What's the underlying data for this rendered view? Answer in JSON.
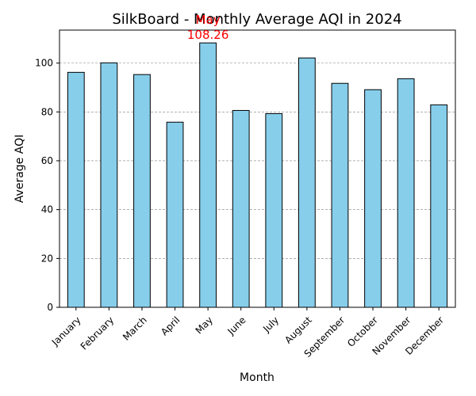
{
  "chart_data": {
    "type": "bar",
    "title": "SilkBoard - Monthly Average AQI in 2024",
    "xlabel": "Month",
    "ylabel": "Average AQI",
    "ylim": [
      0,
      113.5
    ],
    "yticks": [
      0,
      20,
      40,
      60,
      80,
      100
    ],
    "grid": true,
    "categories": [
      "January",
      "February",
      "March",
      "April",
      "May",
      "June",
      "July",
      "August",
      "September",
      "October",
      "November",
      "December"
    ],
    "values": [
      96.2,
      100.1,
      95.3,
      75.8,
      108.26,
      80.6,
      79.3,
      102.1,
      91.7,
      89.1,
      93.6,
      82.9
    ],
    "bar_color": "#87ceeb",
    "edge_color": "#000000",
    "annotation": {
      "category": "May",
      "line1": "May",
      "line2": "108.26",
      "color": "#ff0000"
    }
  }
}
